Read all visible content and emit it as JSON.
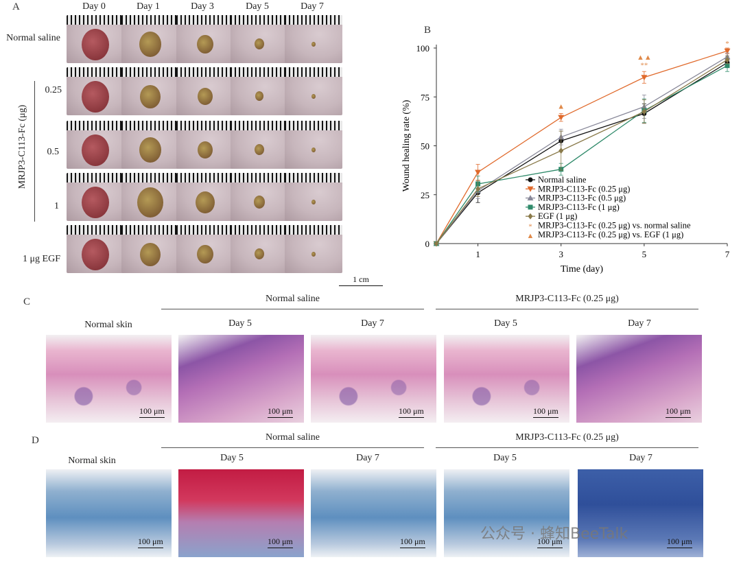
{
  "panel_a": {
    "letter": "A",
    "days": [
      "Day 0",
      "Day 1",
      "Day 3",
      "Day 5",
      "Day 7"
    ],
    "rows": [
      {
        "label": "Normal saline",
        "wound": [
          1.0,
          0.8,
          0.6,
          0.35,
          0.12
        ]
      },
      {
        "label": "0.25",
        "wound": [
          1.0,
          0.75,
          0.55,
          0.3,
          0.08
        ]
      },
      {
        "label": "0.5",
        "wound": [
          1.0,
          0.8,
          0.55,
          0.35,
          0.12
        ]
      },
      {
        "label": "1",
        "wound": [
          1.0,
          0.95,
          0.7,
          0.4,
          0.15
        ]
      },
      {
        "label": "1 μg EGF",
        "wound": [
          1.0,
          0.75,
          0.6,
          0.35,
          0.15
        ]
      }
    ],
    "group_label": "MRJP3-C113-Fc (μg)",
    "scale": "1 cm"
  },
  "chart_data": {
    "type": "line",
    "panel_letter": "B",
    "ylabel": "Wound healing rate (%)",
    "xlabel": "Time (day)",
    "x": [
      0,
      1,
      3,
      5,
      7
    ],
    "xticks": [
      "1",
      "3",
      "5",
      "7"
    ],
    "yticks": [
      "0",
      "25",
      "50",
      "75",
      "100"
    ],
    "ylim": [
      0,
      100
    ],
    "series": [
      {
        "name": "Normal saline",
        "color": "#111111",
        "marker": "circle",
        "values": [
          0,
          26,
          52.5,
          66.5,
          92.5
        ],
        "err": [
          0,
          5,
          5,
          5,
          2
        ]
      },
      {
        "name": "MRJP3-C113-Fc (0.25 μg)",
        "color": "#e06a2c",
        "marker": "tri-down",
        "values": [
          0,
          36.5,
          64.5,
          85,
          98.5
        ],
        "err": [
          0,
          4,
          2,
          3,
          1.5
        ]
      },
      {
        "name": "MRJP3-C113-Fc (0.5 μg)",
        "color": "#888899",
        "marker": "tri-up",
        "values": [
          0,
          27,
          54.5,
          70,
          95.5
        ],
        "err": [
          0,
          4,
          4,
          6,
          2
        ]
      },
      {
        "name": "MRJP3-C113-Fc (1 μg)",
        "color": "#2f8a6a",
        "marker": "square",
        "values": [
          0,
          30.5,
          38,
          68,
          91
        ],
        "err": [
          0,
          4,
          3,
          6,
          3
        ]
      },
      {
        "name": "EGF (1 μg)",
        "color": "#8a7a4a",
        "marker": "diamond",
        "values": [
          0,
          28,
          47.5,
          67.5,
          94
        ],
        "err": [
          0,
          4,
          10,
          6,
          2
        ]
      }
    ],
    "significance_legend": [
      {
        "name": "MRJP3-C113-Fc (0.25 μg) vs. normal saline",
        "symbol": "*",
        "color": "#e08a4a"
      },
      {
        "name": "MRJP3-C113-Fc (0.25 μg) vs. EGF (1 μg)",
        "symbol": "▲",
        "color": "#e08a4a"
      }
    ],
    "annotations": [
      {
        "x": 3,
        "y": 69,
        "text": "▲"
      },
      {
        "x": 5,
        "y": 94,
        "text": "▲▲"
      },
      {
        "x": 5,
        "y": 90,
        "text": "**"
      },
      {
        "x": 7,
        "y": 101,
        "text": "*"
      }
    ],
    "legend_position": "lower-right"
  },
  "panel_c": {
    "letter": "C",
    "normal_skin": "Normal skin",
    "group1": "Normal saline",
    "group2": "MRJP3-C113-Fc (0.25 μg)",
    "day5": "Day 5",
    "day7": "Day 7",
    "scale": "100 μm"
  },
  "panel_d": {
    "letter": "D",
    "normal_skin": "Normal skin",
    "group1": "Normal saline",
    "group2": "MRJP3-C113-Fc (0.25 μg)",
    "day5": "Day 5",
    "day7": "Day 7",
    "scale": "100 μm"
  },
  "watermark": "公众号 · 蜂知BeeTalk"
}
